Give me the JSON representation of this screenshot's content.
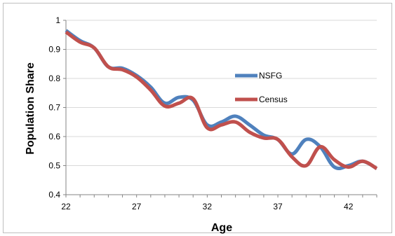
{
  "chart_data": {
    "type": "line",
    "xlabel": "Age",
    "ylabel": "Population Share",
    "xlim": [
      22,
      44
    ],
    "ylim": [
      0.4,
      1.0
    ],
    "xticks": [
      22,
      27,
      32,
      37,
      42
    ],
    "xtick_labels": [
      "22",
      "27",
      "32",
      "37",
      "42"
    ],
    "yticks": [
      0.4,
      0.5,
      0.6,
      0.7,
      0.8,
      0.9,
      1.0
    ],
    "ytick_labels": [
      "0.4",
      "0.5",
      "0.6",
      "0.7",
      "0.8",
      "0.9",
      "1"
    ],
    "grid": "horizontal",
    "legend_position": "center-right",
    "x": [
      22,
      23,
      24,
      25,
      26,
      27,
      28,
      29,
      30,
      31,
      32,
      33,
      34,
      35,
      36,
      37,
      38,
      39,
      40,
      41,
      42,
      43,
      44
    ],
    "series": [
      {
        "name": "NSFG",
        "color": "#4f81bd",
        "values": [
          0.965,
          0.93,
          0.905,
          0.84,
          0.835,
          0.81,
          0.77,
          0.715,
          0.735,
          0.725,
          0.64,
          0.65,
          0.67,
          0.64,
          0.605,
          0.59,
          0.54,
          0.59,
          0.565,
          0.495,
          0.5,
          0.515,
          0.49
        ]
      },
      {
        "name": "Census",
        "color": "#c0504d",
        "values": [
          0.96,
          0.925,
          0.905,
          0.84,
          0.83,
          0.805,
          0.76,
          0.705,
          0.715,
          0.73,
          0.63,
          0.64,
          0.65,
          0.615,
          0.595,
          0.59,
          0.53,
          0.5,
          0.565,
          0.52,
          0.495,
          0.515,
          0.49
        ]
      }
    ]
  }
}
